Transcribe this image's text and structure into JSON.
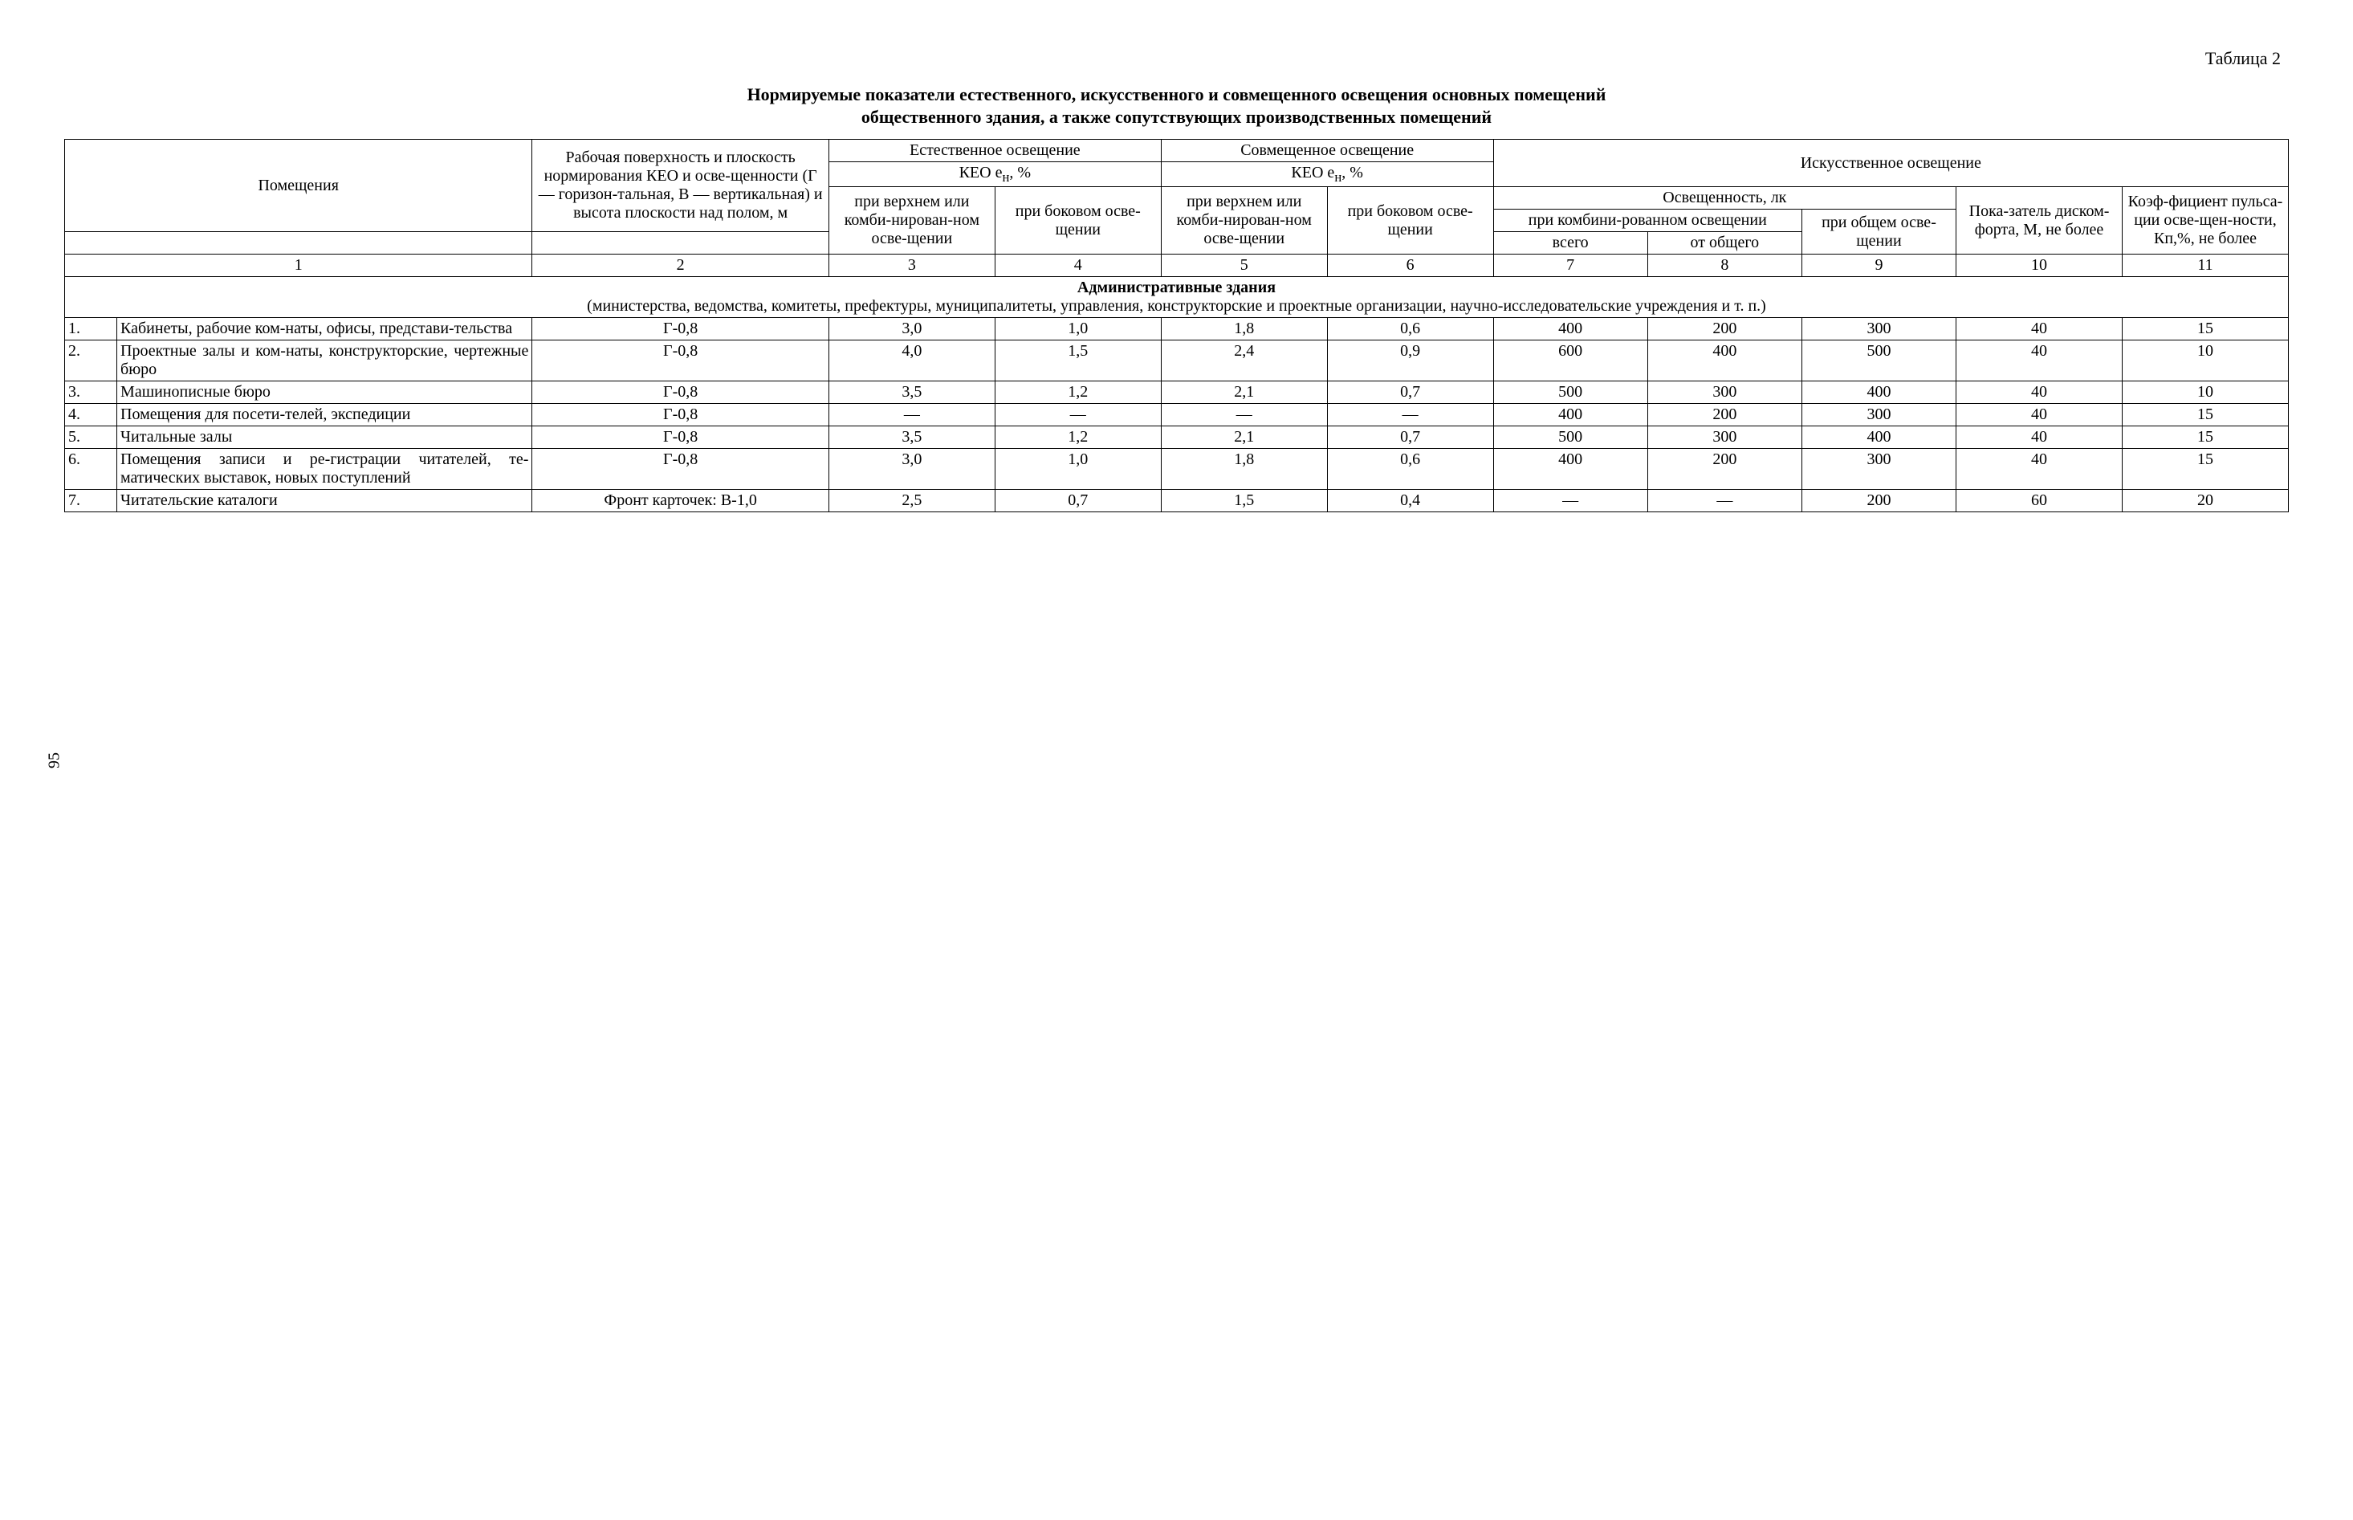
{
  "page_number": "95",
  "table_label": "Таблица 2",
  "title_line1": "Нормируемые показатели естественного, искусственного и совмещенного освещения основных помещений",
  "title_line2": "общественного здания, а также сопутствующих производственных помещений",
  "header": {
    "col1": "Помещения",
    "col2": "Рабочая поверхность и плоскость нормирования КЕО и осве-щенности (Г — горизон-тальная, В — вертикальная) и высота плоскости над полом, м",
    "natural": "Естественное освещение",
    "combined": "Совмещенное освещение",
    "artificial": "Искусственное освещение",
    "keo1": "КЕО e",
    "keo_sub": "н",
    "keo_pct": ", %",
    "top_or_comb": "при верхнем или комби-нирован-ном осве-щении",
    "side": "при боковом осве-щении",
    "illum": "Освещенность, лк",
    "discomfort": "Пока-затель диском-форта, М, не более",
    "pulsation": "Коэф-фициент пульса-ции осве-щен-ности, Кп,%, не более",
    "combined_light": "при комбини-рованном освещении",
    "general_light": "при общем осве-щении",
    "total": "всего",
    "from_general": "от общего"
  },
  "col_nums": [
    "1",
    "2",
    "3",
    "4",
    "5",
    "6",
    "7",
    "8",
    "9",
    "10",
    "11"
  ],
  "section": {
    "title": "Административные здания",
    "subtitle": "(министерства, ведомства, комитеты, префектуры, муниципалитеты, управления, конструкторские и проектные организации, научно-исследовательские учреждения и т. п.)"
  },
  "rows": [
    {
      "n": "1.",
      "name": "Кабинеты, рабочие ком-наты, офисы, представи-тельства",
      "surf": "Г-0,8",
      "c3": "3,0",
      "c4": "1,0",
      "c5": "1,8",
      "c6": "0,6",
      "c7": "400",
      "c8": "200",
      "c9": "300",
      "c10": "40",
      "c11": "15"
    },
    {
      "n": "2.",
      "name": "Проектные залы и ком-наты, конструкторские, чертежные бюро",
      "surf": "Г-0,8",
      "c3": "4,0",
      "c4": "1,5",
      "c5": "2,4",
      "c6": "0,9",
      "c7": "600",
      "c8": "400",
      "c9": "500",
      "c10": "40",
      "c11": "10"
    },
    {
      "n": "3.",
      "name": "Машинописные бюро",
      "surf": "Г-0,8",
      "c3": "3,5",
      "c4": "1,2",
      "c5": "2,1",
      "c6": "0,7",
      "c7": "500",
      "c8": "300",
      "c9": "400",
      "c10": "40",
      "c11": "10"
    },
    {
      "n": "4.",
      "name": "Помещения для посети-телей, экспедиции",
      "surf": "Г-0,8",
      "c3": "—",
      "c4": "—",
      "c5": "—",
      "c6": "—",
      "c7": "400",
      "c8": "200",
      "c9": "300",
      "c10": "40",
      "c11": "15"
    },
    {
      "n": "5.",
      "name": "Читальные залы",
      "surf": "Г-0,8",
      "c3": "3,5",
      "c4": "1,2",
      "c5": "2,1",
      "c6": "0,7",
      "c7": "500",
      "c8": "300",
      "c9": "400",
      "c10": "40",
      "c11": "15"
    },
    {
      "n": "6.",
      "name": "Помещения записи и ре-гистрации читателей, те-матических выставок, новых поступлений",
      "surf": "Г-0,8",
      "c3": "3,0",
      "c4": "1,0",
      "c5": "1,8",
      "c6": "0,6",
      "c7": "400",
      "c8": "200",
      "c9": "300",
      "c10": "40",
      "c11": "15"
    },
    {
      "n": "7.",
      "name": "Читательские каталоги",
      "surf": "Фронт карточек: В-1,0",
      "c3": "2,5",
      "c4": "0,7",
      "c5": "1,5",
      "c6": "0,4",
      "c7": "—",
      "c8": "—",
      "c9": "200",
      "c10": "60",
      "c11": "20"
    }
  ]
}
